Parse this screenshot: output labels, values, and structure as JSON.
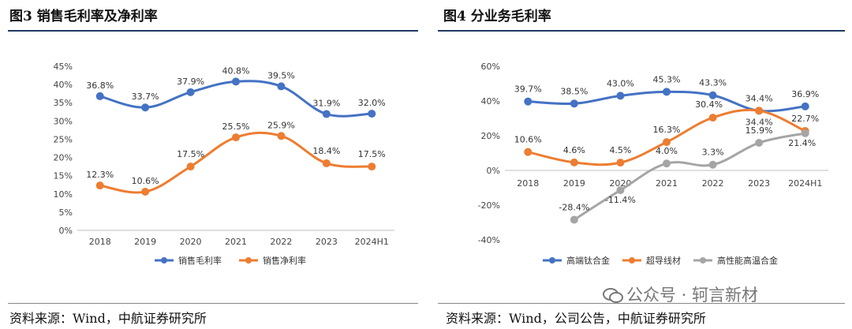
{
  "left": {
    "title": "图3  销售毛利率及净利率",
    "source": "资料来源：Wind，中航证券研究所",
    "chart_data": {
      "type": "line",
      "categories": [
        "2018",
        "2019",
        "2020",
        "2021",
        "2022",
        "2023",
        "2024H1"
      ],
      "y_ticks": [
        "0%",
        "5%",
        "10%",
        "15%",
        "20%",
        "25%",
        "30%",
        "35%",
        "40%",
        "45%"
      ],
      "ylim": [
        0,
        45
      ],
      "grid": false,
      "legend_position": "bottom",
      "series": [
        {
          "name": "销售毛利率",
          "color": "#4472c4",
          "values": [
            36.8,
            33.7,
            37.9,
            40.8,
            39.5,
            31.9,
            32.0
          ],
          "labels": [
            "36.8%",
            "33.7%",
            "37.9%",
            "40.8%",
            "39.5%",
            "31.9%",
            "32.0%"
          ]
        },
        {
          "name": "销售净利率",
          "color": "#ed7d31",
          "values": [
            12.3,
            10.6,
            17.5,
            25.5,
            25.9,
            18.4,
            17.5
          ],
          "labels": [
            "12.3%",
            "10.6%",
            "17.5%",
            "25.5%",
            "25.9%",
            "18.4%",
            "17.5%"
          ]
        }
      ]
    }
  },
  "right": {
    "title": "图4  分业务毛利率",
    "source": "资料来源：Wind，公司公告，中航证券研究所",
    "watermark": "公众号 · 轲言新材",
    "chart_data": {
      "type": "line",
      "categories": [
        "2018",
        "2019",
        "2020",
        "2021",
        "2022",
        "2023",
        "2024H1"
      ],
      "y_ticks": [
        "-40%",
        "-20%",
        "0%",
        "20%",
        "40%",
        "60%"
      ],
      "ylim": [
        -40,
        60
      ],
      "grid": false,
      "legend_position": "bottom",
      "series": [
        {
          "name": "高端钛合金",
          "color": "#4472c4",
          "values": [
            39.7,
            38.5,
            43.0,
            45.3,
            43.3,
            34.4,
            36.9
          ],
          "labels": [
            "39.7%",
            "38.5%",
            "43.0%",
            "45.3%",
            "43.3%",
            "34.4%",
            "36.9%"
          ]
        },
        {
          "name": "超导线材",
          "color": "#ed7d31",
          "values": [
            10.6,
            4.6,
            4.5,
            16.3,
            30.4,
            34.4,
            22.7
          ],
          "labels": [
            "10.6%",
            "4.6%",
            "4.5%",
            "16.3%",
            "30.4%",
            "34.4%",
            "22.7%"
          ]
        },
        {
          "name": "高性能高温合金",
          "color": "#a5a5a5",
          "values": [
            null,
            -28.4,
            -11.4,
            4.0,
            3.3,
            15.9,
            21.4
          ],
          "labels": [
            "",
            "-28.4%",
            "-11.4%",
            "4.0%",
            "3.3%",
            "15.9%",
            "21.4%"
          ]
        }
      ]
    }
  }
}
